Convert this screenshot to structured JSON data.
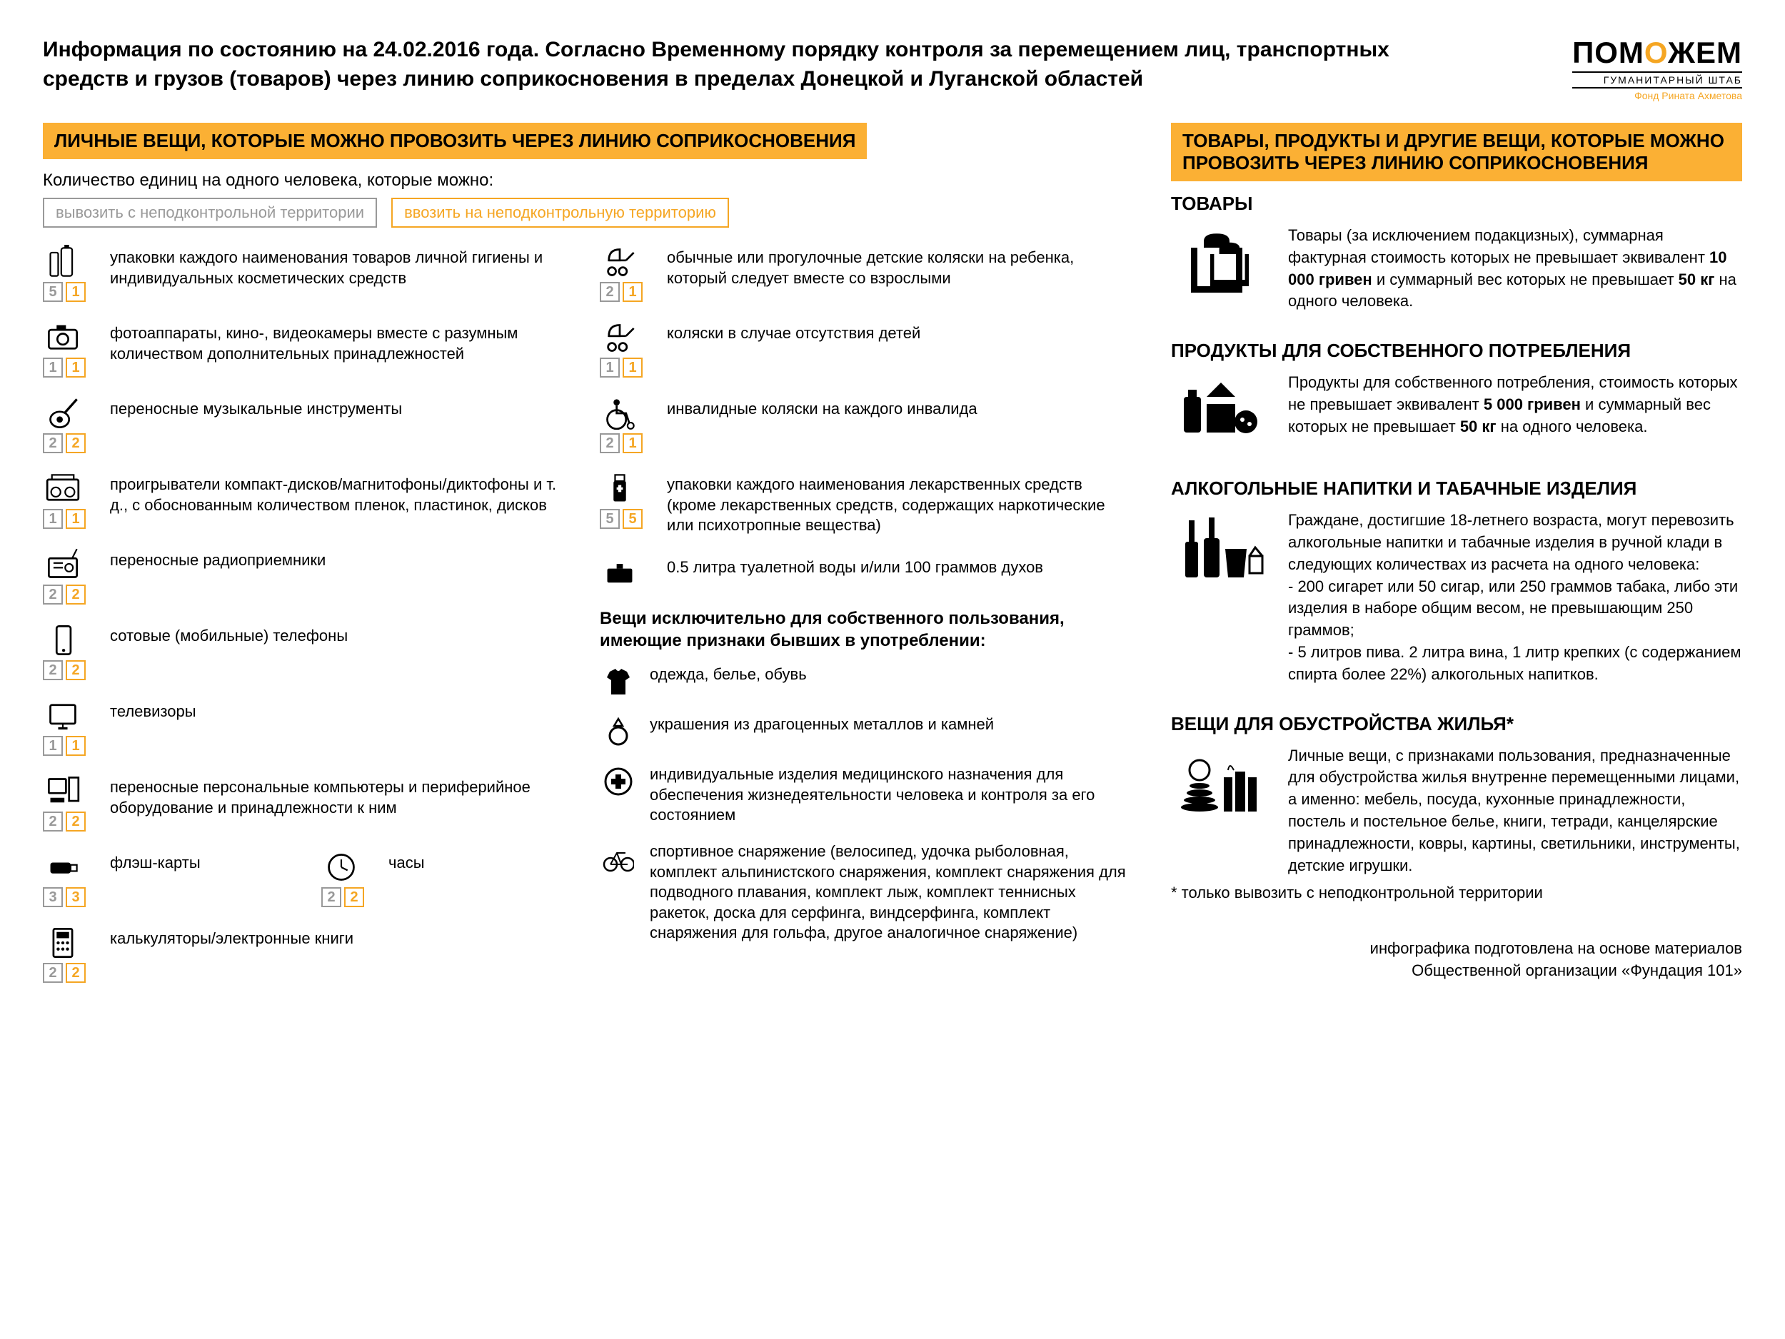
{
  "colors": {
    "accent": "#fbb034",
    "gray": "#999999",
    "orange_text": "#f5a623"
  },
  "header": {
    "title": "Информация по состоянию на 24.02.2016 года. Согласно Временному порядку контроля за перемещением лиц, транспортных средств и грузов (товаров) через линию соприкосновения в пределах Донецкой и Луганской областей",
    "logo_main_pre": "ПОМ",
    "logo_main_o": "О",
    "logo_main_post": "ЖЕМ",
    "logo_sub1": "ГУМАНИТАРНЫЙ ШТАБ",
    "logo_sub2": "Фонд Рината Ахметова"
  },
  "left": {
    "banner": "ЛИЧНЫЕ ВЕЩИ, КОТОРЫЕ МОЖНО ПРОВОЗИТЬ ЧЕРЕЗ ЛИНИЮ СОПРИКОСНОВЕНИЯ",
    "subtitle": "Количество единиц на одного человека, которые можно:",
    "legend_out": "вывозить с неподконтрольной территории",
    "legend_in": "ввозить на неподконтрольную территорию",
    "colA": [
      {
        "icon": "toiletries",
        "q_out": "5",
        "q_in": "1",
        "text": "упаковки каждого наименования товаров личной гигиены и индивидуальных косметических средств"
      },
      {
        "icon": "camera",
        "q_out": "1",
        "q_in": "1",
        "text": "фотоаппараты, кино-, видеокамеры вместе с разумным количеством дополнительных принадлежностей"
      },
      {
        "icon": "guitar",
        "q_out": "2",
        "q_in": "2",
        "text": "переносные музыкальные инструменты"
      },
      {
        "icon": "boombox",
        "q_out": "1",
        "q_in": "1",
        "text": "проигрыватели компакт-дисков/магнитофоны/диктофоны и т. д., с обоснованным количеством пленок, пластинок, дисков"
      },
      {
        "icon": "radio",
        "q_out": "2",
        "q_in": "2",
        "text": "переносные радиоприемники"
      },
      {
        "icon": "phone",
        "q_out": "2",
        "q_in": "2",
        "text": "сотовые (мобильные) телефоны"
      },
      {
        "icon": "tv",
        "q_out": "1",
        "q_in": "1",
        "text": "телевизоры"
      },
      {
        "icon": "pc",
        "q_out": "2",
        "q_in": "2",
        "text": "переносные персональные компьютеры и периферийное оборудование и принадлежности к ним"
      }
    ],
    "colA_pair": [
      {
        "icon": "usb",
        "q_out": "3",
        "q_in": "3",
        "text": "флэш-карты"
      },
      {
        "icon": "clock",
        "q_out": "2",
        "q_in": "2",
        "text": "часы"
      }
    ],
    "colA_last": {
      "icon": "calc",
      "q_out": "2",
      "q_in": "2",
      "text": "калькуляторы/электронные книги"
    },
    "colB": [
      {
        "icon": "stroller",
        "q_out": "2",
        "q_in": "1",
        "text": "обычные или прогулочные детские коляски на ребенка, который следует вместе со взрослыми"
      },
      {
        "icon": "stroller2",
        "q_out": "1",
        "q_in": "1",
        "text": "коляски в случае отсутствия детей"
      },
      {
        "icon": "wheelchair",
        "q_out": "2",
        "q_in": "1",
        "text": "инвалидные коляски на каждого инвалида"
      },
      {
        "icon": "meds",
        "q_out": "5",
        "q_in": "5",
        "text": "упаковки каждого наименования лекарственных средств (кроме лекарственных средств, содержащих наркотические или психотропные вещества)"
      },
      {
        "icon": "perfume",
        "q_out": "",
        "q_in": "",
        "text": "0.5 литра туалетной воды и/или 100 граммов духов"
      }
    ],
    "personal_use_hdr": "Вещи исключительно для собственного пользования, имеющие признаки бывших в употреблении:",
    "simple": [
      {
        "icon": "tshirt",
        "text": "одежда, белье, обувь"
      },
      {
        "icon": "ring",
        "text": "украшения из драгоценных металлов и камней"
      },
      {
        "icon": "medical",
        "text": "индивидуальные изделия медицинского назначения для обеспечения жизнедеятельности человека и контроля за его состоянием"
      },
      {
        "icon": "bike",
        "text": "спортивное снаряжение (велосипед, удочка рыболовная, комплект альпинистского снаряжения, комплект снаряжения для подводного плавания, комплект лыж, комплект теннисных ракеток, доска для серфинга, виндсерфинга, комплект снаряжения для гольфа, другое аналогичное снаряжение)"
      }
    ]
  },
  "right": {
    "banner": "ТОВАРЫ, ПРОДУКТЫ И ДРУГИЕ ВЕЩИ, КОТОРЫЕ МОЖНО ПРОВОЗИТЬ ЧЕРЕЗ ЛИНИЮ СОПРИКОСНОВЕНИЯ",
    "sections": {
      "goods": {
        "h": "ТОВАРЫ",
        "text_pre": "Товары (за исключением подакцизных), суммарная фактурная стоимость которых не превышает эквивалент ",
        "b1": "10 000 гривен",
        "mid": " и суммарный вес которых не превышает ",
        "b2": "50 кг",
        "post": " на одного человека."
      },
      "food": {
        "h": "ПРОДУКТЫ ДЛЯ СОБСТВЕННОГО ПОТРЕБЛЕНИЯ",
        "text_pre": "Продукты для собственного потребления, стоимость которых не превышает эквивалент ",
        "b1": "5 000 гривен",
        "mid": " и суммарный вес которых не превышает ",
        "b2": "50 кг",
        "post": " на одного человека."
      },
      "alcohol": {
        "h": "АЛКОГОЛЬНЫЕ НАПИТКИ И ТАБАЧНЫЕ ИЗДЕЛИЯ",
        "text": "Граждане, достигшие 18-летнего возраста, могут перевозить алкогольные напитки и табачные изделия в ручной клади в следующих количествах из расчета на одного человека:\n- 200 сигарет или 50 сигар, или 250 граммов табака, либо эти изделия в наборе общим весом, не превышающим 250 граммов;\n- 5 литров пива. 2 литра вина, 1 литр крепких (с содержанием спирта более 22%) алкогольных напитков."
      },
      "housing": {
        "h": "ВЕЩИ ДЛЯ ОБУСТРОЙСТВА ЖИЛЬЯ*",
        "text": "Личные вещи, с признаками пользования, предназначенные для обустройства жилья внутренне перемещенными лицами, а именно: мебель, посуда, кухонные принадлежности, постель и постельное белье, книги, тетради, канцелярские принадлежности, ковры, картины, светильники, инструменты, детские игрушки.",
        "footnote": "* только вывозить с неподконтрольной территории"
      }
    },
    "credit1": "инфографика подготовлена на основе материалов",
    "credit2": "Общественной организации «Фундация 101»"
  }
}
